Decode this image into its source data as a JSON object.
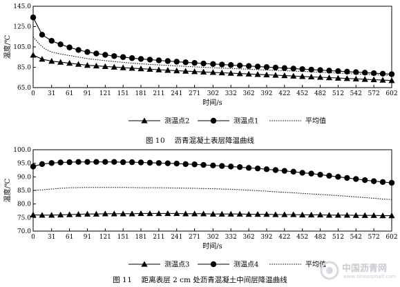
{
  "chart_data": [
    {
      "type": "line",
      "caption": {
        "label": "图",
        "number": "10",
        "title": "沥青混凝土表层降温曲线"
      },
      "xlabel": "时间/s",
      "ylabel": "温度/℃",
      "xlim": [
        0,
        602
      ],
      "ylim": [
        65,
        145
      ],
      "xticks": [
        0,
        31,
        61,
        91,
        121,
        151,
        181,
        211,
        241,
        271,
        302,
        332,
        362,
        392,
        422,
        452,
        482,
        512,
        542,
        572,
        602
      ],
      "ytick_labels": [
        "65.0",
        "85.0",
        "105.0",
        "125.0",
        "145.0"
      ],
      "yticks": [
        65,
        85,
        105,
        125,
        145
      ],
      "legend_position": "bottom",
      "series": [
        {
          "name": "测温点2",
          "marker": "triangle",
          "x": [
            0,
            15,
            31,
            46,
            61,
            76,
            91,
            106,
            121,
            136,
            151,
            166,
            181,
            196,
            211,
            226,
            241,
            256,
            271,
            286,
            302,
            317,
            332,
            347,
            362,
            377,
            392,
            407,
            422,
            437,
            452,
            467,
            482,
            497,
            512,
            527,
            542,
            557,
            572,
            587,
            602
          ],
          "y": [
            97,
            93,
            91,
            90,
            89,
            88,
            87,
            86.4,
            85.8,
            85.2,
            84.6,
            84.1,
            83.6,
            83.1,
            82.6,
            82.1,
            81.6,
            81.2,
            80.8,
            80.4,
            80,
            79.6,
            79.2,
            78.8,
            78.4,
            78,
            77.6,
            77.2,
            76.8,
            76.4,
            76,
            75.6,
            75.2,
            74.8,
            74.4,
            74,
            73.6,
            73.2,
            72.8,
            72.4,
            72
          ]
        },
        {
          "name": "测温点1",
          "marker": "circle",
          "x": [
            0,
            15,
            31,
            46,
            61,
            76,
            91,
            106,
            121,
            136,
            151,
            166,
            181,
            196,
            211,
            226,
            241,
            256,
            271,
            286,
            302,
            317,
            332,
            347,
            362,
            377,
            392,
            407,
            422,
            437,
            452,
            467,
            482,
            497,
            512,
            527,
            542,
            557,
            572,
            587,
            602
          ],
          "y": [
            134,
            117,
            111,
            107.5,
            104.5,
            102,
            100,
            98.5,
            97.2,
            96,
            95,
            94,
            93.2,
            92.5,
            91.8,
            91.1,
            90.5,
            89.9,
            89.3,
            88.7,
            88.2,
            87.7,
            87.2,
            86.7,
            86.2,
            85.7,
            85.2,
            84.7,
            84.2,
            83.7,
            83.2,
            82.7,
            82.2,
            81.7,
            81.2,
            80.7,
            80.2,
            79.7,
            79.2,
            78.7,
            78.2
          ]
        },
        {
          "name": "平均值",
          "marker": "none",
          "dash": "dotted",
          "x": [
            0,
            10,
            20,
            31,
            46,
            61,
            91,
            121,
            151,
            181,
            211,
            241,
            271,
            302,
            332,
            362,
            392,
            422,
            452,
            482,
            512,
            542,
            572,
            602
          ],
          "y": [
            115,
            108,
            103,
            100,
            98,
            96.5,
            93.5,
            91.5,
            89.8,
            88.4,
            87.3,
            86.3,
            85.4,
            84.6,
            83.8,
            83.1,
            82.3,
            81.6,
            80.9,
            80.1,
            79.3,
            78.5,
            77.7,
            76.9
          ]
        }
      ]
    },
    {
      "type": "line",
      "caption": {
        "label": "图",
        "number": "11",
        "title": "距离表层 2 cm 处沥青混凝土中间层降温曲线"
      },
      "xlabel": "时间/s",
      "ylabel": "温度/℃",
      "xlim": [
        0,
        602
      ],
      "ylim": [
        70,
        100
      ],
      "xticks": [
        0,
        31,
        61,
        91,
        121,
        151,
        181,
        211,
        241,
        271,
        302,
        332,
        362,
        392,
        422,
        452,
        482,
        512,
        542,
        572,
        602
      ],
      "ytick_labels": [
        "70.0",
        "75.0",
        "80.0",
        "85.0",
        "90.0",
        "95.0",
        "100.0"
      ],
      "yticks": [
        70,
        75,
        80,
        85,
        90,
        95,
        100
      ],
      "legend_position": "bottom",
      "series": [
        {
          "name": "测温点3",
          "marker": "triangle",
          "x": [
            0,
            15,
            31,
            46,
            61,
            76,
            91,
            106,
            121,
            136,
            151,
            166,
            181,
            196,
            211,
            226,
            241,
            256,
            271,
            286,
            302,
            317,
            332,
            347,
            362,
            377,
            392,
            407,
            422,
            437,
            452,
            467,
            482,
            497,
            512,
            527,
            542,
            557,
            572,
            587,
            602
          ],
          "y": [
            76,
            75.9,
            75.9,
            76,
            76.1,
            76.2,
            76.3,
            76.3,
            76.4,
            76.4,
            76.4,
            76.4,
            76.5,
            76.5,
            76.5,
            76.5,
            76.5,
            76.4,
            76.4,
            76.4,
            76.3,
            76.3,
            76.3,
            76.3,
            76.2,
            76.2,
            76.2,
            76.1,
            76.1,
            76.1,
            76,
            76,
            76,
            75.9,
            75.9,
            75.9,
            75.8,
            75.8,
            75.8,
            75.7,
            75.7
          ]
        },
        {
          "name": "测温点4",
          "marker": "circle",
          "x": [
            0,
            15,
            31,
            46,
            61,
            76,
            91,
            106,
            121,
            136,
            151,
            166,
            181,
            196,
            211,
            226,
            241,
            256,
            271,
            286,
            302,
            317,
            332,
            347,
            362,
            377,
            392,
            407,
            422,
            437,
            452,
            467,
            482,
            497,
            512,
            527,
            542,
            557,
            572,
            587,
            602
          ],
          "y": [
            93.8,
            94.7,
            95.1,
            95.3,
            95.4,
            95.5,
            95.5,
            95.5,
            95.5,
            95.5,
            95.4,
            95.4,
            95.3,
            95.2,
            95.1,
            95,
            94.9,
            94.7,
            94.6,
            94.4,
            94.2,
            94,
            93.8,
            93.6,
            93.3,
            93.1,
            92.8,
            92.5,
            92.2,
            91.9,
            91.5,
            91.2,
            90.8,
            90.4,
            90,
            89.6,
            89.2,
            88.8,
            88.4,
            88.1,
            87.8
          ]
        },
        {
          "name": "平均值",
          "marker": "none",
          "dash": "dotted",
          "x": [
            0,
            15,
            31,
            46,
            61,
            91,
            121,
            151,
            181,
            211,
            241,
            271,
            302,
            332,
            362,
            392,
            422,
            452,
            482,
            512,
            542,
            572,
            602
          ],
          "y": [
            85,
            85.2,
            85.5,
            85.8,
            86,
            86.1,
            86.1,
            86.1,
            86,
            86,
            85.9,
            85.8,
            85.6,
            85.4,
            85.1,
            84.7,
            84.3,
            83.9,
            83.5,
            83.1,
            82.6,
            82.1,
            81.6
          ]
        }
      ]
    }
  ],
  "watermark": {
    "name": "中国沥青网",
    "url": "www.sinoasphalt.com"
  }
}
